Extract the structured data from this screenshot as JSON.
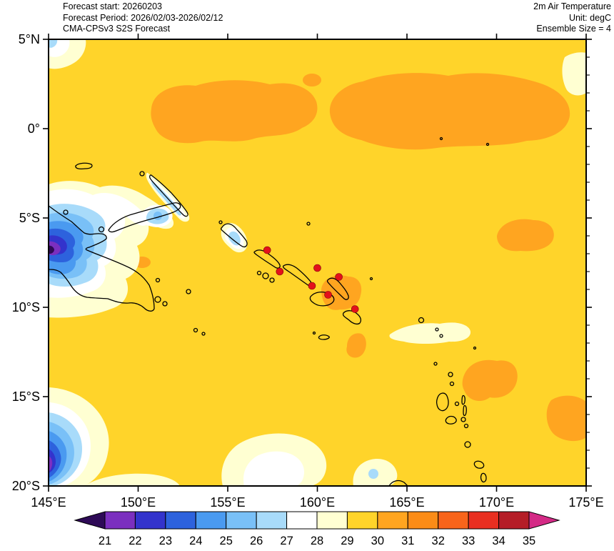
{
  "header": {
    "left": {
      "line1": "Forecast start: 20260203",
      "line2": "Forecast Period: 2026/02/03-2026/02/12",
      "line3": "CMA-CPSv3 S2S Forecast"
    },
    "right": {
      "line1": "2m Air Temperature",
      "line2": "Unit: degC",
      "line3": "Ensemble Size = 4"
    }
  },
  "axes": {
    "lon_min": 145,
    "lon_max": 175,
    "lat_min": -20,
    "lat_max": 5,
    "x": [
      {
        "label": "145°E",
        "lon": 145
      },
      {
        "label": "150°E",
        "lon": 150
      },
      {
        "label": "155°E",
        "lon": 155
      },
      {
        "label": "160°E",
        "lon": 160
      },
      {
        "label": "165°E",
        "lon": 165
      },
      {
        "label": "170°E",
        "lon": 170
      },
      {
        "label": "175°E",
        "lon": 175
      }
    ],
    "y": [
      {
        "label": "5°N",
        "lat": 5
      },
      {
        "label": "0°",
        "lat": 0
      },
      {
        "label": "5°S",
        "lat": -5
      },
      {
        "label": "10°S",
        "lat": -10
      },
      {
        "label": "15°S",
        "lat": -15
      },
      {
        "label": "20°S",
        "lat": -20
      }
    ]
  },
  "colorbar": {
    "labels": [
      "21",
      "22",
      "23",
      "24",
      "25",
      "26",
      "27",
      "28",
      "29",
      "30",
      "31",
      "32",
      "33",
      "34",
      "35"
    ],
    "under_color": "#2e0a57",
    "segment_colors": [
      "#7b2fbf",
      "#3333cc",
      "#2d62dd",
      "#4a9af0",
      "#79c0f7",
      "#a8dbfa",
      "#ffffff",
      "#ffffd2",
      "#ffd42a",
      "#ffa520",
      "#fb8c17",
      "#f8641a",
      "#e92f21",
      "#b51d27"
    ],
    "over_color": "#d42a86"
  },
  "chart_data": {
    "type": "heatmap",
    "title": "2m Air Temperature",
    "unit": "degC",
    "model": "CMA-CPSv3 S2S Forecast",
    "forecast_start": "20260203",
    "forecast_period": "2026/02/03-2026/02/12",
    "ensemble_size": 4,
    "lon_range": [
      145,
      175
    ],
    "lat_range": [
      -20,
      5
    ],
    "levels_degC": [
      21,
      22,
      23,
      24,
      25,
      26,
      27,
      28,
      29,
      30,
      31,
      32,
      33,
      34,
      35
    ],
    "field_regions": [
      {
        "value_range": "29-30",
        "color": "#ffd42a",
        "description": "Dominant value over most of the ocean domain"
      },
      {
        "value_range": "30-31",
        "color": "#ffa520",
        "description": "Equatorial band ~150E-174E between 2.5N and 2S; patches around the southeastern Solomon Islands, near 170-173E 5-7S, east of Vanuatu 168-171E 13-16S, and at the SE edge 172-175E 15-17S"
      },
      {
        "value_range": "28-29",
        "color": "#ffffd2",
        "description": "Fringes around New Guinea and New Britain, Coral Sea patches in the southwest and south-center, band around Santa Cruz Islands 164-169E 10.5-12S, and NW/NE corners"
      },
      {
        "value_range": "21-28",
        "color": "#2d62dd",
        "description": "Cool pool over the New Guinea highlands at the west edge (4-8S) dropping below 21 degC at the core; secondary cool pool in the SW corner (16-20S)"
      }
    ],
    "stations": [
      {
        "lon": 157.2,
        "lat": -6.8
      },
      {
        "lon": 157.9,
        "lat": -8.0
      },
      {
        "lon": 160.0,
        "lat": -7.8
      },
      {
        "lon": 161.2,
        "lat": -8.3
      },
      {
        "lon": 159.7,
        "lat": -8.8
      },
      {
        "lon": 160.6,
        "lat": -9.3
      },
      {
        "lon": 162.1,
        "lat": -10.1
      }
    ],
    "station_marker_color": "#e3111b"
  }
}
